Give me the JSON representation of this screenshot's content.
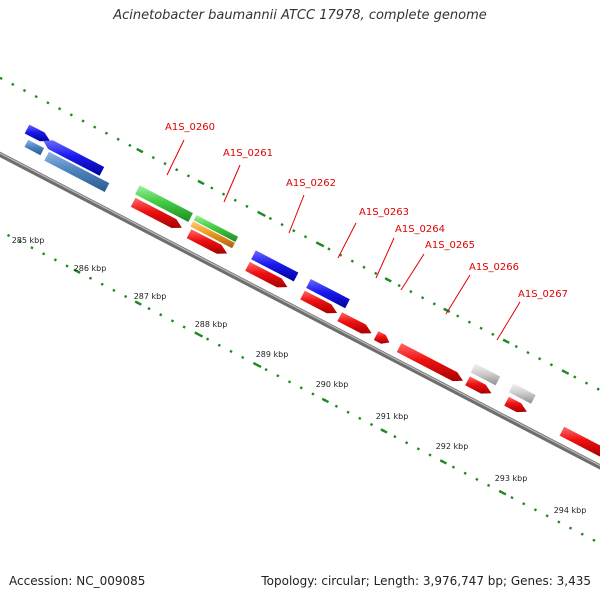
{
  "title": "Acinetobacter baumannii ATCC 17978, complete genome",
  "footer": {
    "accession": "Accession: NC_009085",
    "summary": "Topology: circular; Length: 3,976,747 bp; Genes: 3,435"
  },
  "colors": {
    "backbone": "#7a7a7a",
    "tick_green": "#1f8a1f",
    "label_red": "#e00000",
    "red": "#ee1111",
    "blue": "#1a1aee",
    "green": "#44cc44",
    "orange": "#ee9922",
    "grey": "#c8c8c8",
    "steelblue": "#4f84c0"
  },
  "kbp_labels": [
    "285 kbp",
    "286 kbp",
    "287 kbp",
    "288 kbp",
    "289 kbp",
    "290 kbp",
    "291 kbp",
    "292 kbp",
    "293 kbp",
    "294 kbp"
  ],
  "gene_labels": [
    "A1S_0260",
    "A1S_0261",
    "A1S_0262",
    "A1S_0263",
    "A1S_0264",
    "A1S_0265",
    "A1S_0266",
    "A1S_0267"
  ]
}
